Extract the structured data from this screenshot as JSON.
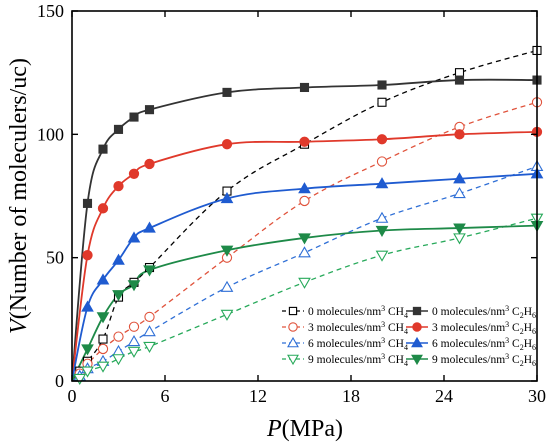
{
  "chart_data": {
    "type": "line",
    "title": "",
    "xlabel": {
      "symbol": "P",
      "unit": "(MPa)"
    },
    "ylabel": {
      "symbol": "V",
      "text": "(Number of moleculers/uc)"
    },
    "xlim": [
      0,
      30
    ],
    "ylim": [
      0,
      150
    ],
    "xticks": [
      0,
      6,
      12,
      18,
      24,
      30
    ],
    "yticks": [
      0,
      50,
      100,
      150
    ],
    "grid": false,
    "legend_position": "bottom-right",
    "x": [
      0.5,
      1,
      2,
      3,
      4,
      5,
      10,
      15,
      20,
      25,
      30
    ],
    "series": [
      {
        "name": "0 molecules/nm³ CH₄",
        "legend": {
          "prefix": "0 molecules/nm",
          "sup": "3",
          "gas": "CH",
          "sub": "4"
        },
        "color": "#000000",
        "marker": "square",
        "filled": false,
        "dashed": true,
        "values": [
          4,
          8,
          17,
          34,
          40,
          46,
          77,
          96,
          113,
          125,
          134
        ]
      },
      {
        "name": "0 molecules/nm³ C₂H₆",
        "legend": {
          "prefix": "0 molecules/nm",
          "sup": "3",
          "gas": "C",
          "sub": "2",
          "gas2": "H",
          "sub2": "6"
        },
        "color": "#333333",
        "marker": "square",
        "filled": true,
        "dashed": false,
        "values": [
          null,
          72,
          94,
          102,
          107,
          110,
          117,
          119,
          120,
          122,
          122
        ]
      },
      {
        "name": "3 molecules/nm³ CH₄",
        "legend": {
          "prefix": "3 molecules/nm",
          "sup": "3",
          "gas": "CH",
          "sub": "4"
        },
        "color": "#e0533c",
        "marker": "circle",
        "filled": false,
        "dashed": true,
        "values": [
          3,
          7,
          13,
          18,
          22,
          26,
          50,
          73,
          89,
          103,
          113
        ]
      },
      {
        "name": "3 molecules/nm³ C₂H₆",
        "legend": {
          "prefix": "3 molecules/nm",
          "sup": "3",
          "gas": "C",
          "sub": "2",
          "gas2": "H",
          "sub2": "6"
        },
        "color": "#e0392b",
        "marker": "circle",
        "filled": true,
        "dashed": false,
        "values": [
          null,
          51,
          70,
          79,
          84,
          88,
          96,
          97,
          98,
          100,
          101
        ]
      },
      {
        "name": "6 molecules/nm³ CH₄",
        "legend": {
          "prefix": "6 molecules/nm",
          "sup": "3",
          "gas": "CH",
          "sub": "4"
        },
        "color": "#2f6fd6",
        "marker": "triangle-up",
        "filled": false,
        "dashed": true,
        "values": [
          2,
          5,
          8,
          12,
          16,
          20,
          38,
          52,
          66,
          76,
          87
        ]
      },
      {
        "name": "6 molecules/nm³ C₂H₆",
        "legend": {
          "prefix": "6 molecules/nm",
          "sup": "3",
          "gas": "C",
          "sub": "2",
          "gas2": "H",
          "sub2": "6"
        },
        "color": "#1f5bd0",
        "marker": "triangle-up",
        "filled": true,
        "dashed": false,
        "values": [
          null,
          30,
          41,
          49,
          58,
          62,
          74,
          78,
          80,
          82,
          84
        ]
      },
      {
        "name": "9 molecules/nm³ CH₄",
        "legend": {
          "prefix": "9 molecules/nm",
          "sup": "3",
          "gas": "CH",
          "sub": "4"
        },
        "color": "#27a95a",
        "marker": "triangle-down",
        "filled": false,
        "dashed": true,
        "values": [
          1,
          4,
          6,
          9,
          12,
          14,
          27,
          40,
          51,
          58,
          66
        ]
      },
      {
        "name": "9 molecules/nm³ C₂H₆",
        "legend": {
          "prefix": "9 molecules/nm",
          "sup": "3",
          "gas": "C",
          "sub": "2",
          "gas2": "H",
          "sub2": "6"
        },
        "color": "#1e8a48",
        "marker": "triangle-down",
        "filled": true,
        "dashed": false,
        "values": [
          null,
          13,
          26,
          35,
          39,
          45,
          53,
          58,
          61,
          62,
          63
        ]
      }
    ]
  }
}
